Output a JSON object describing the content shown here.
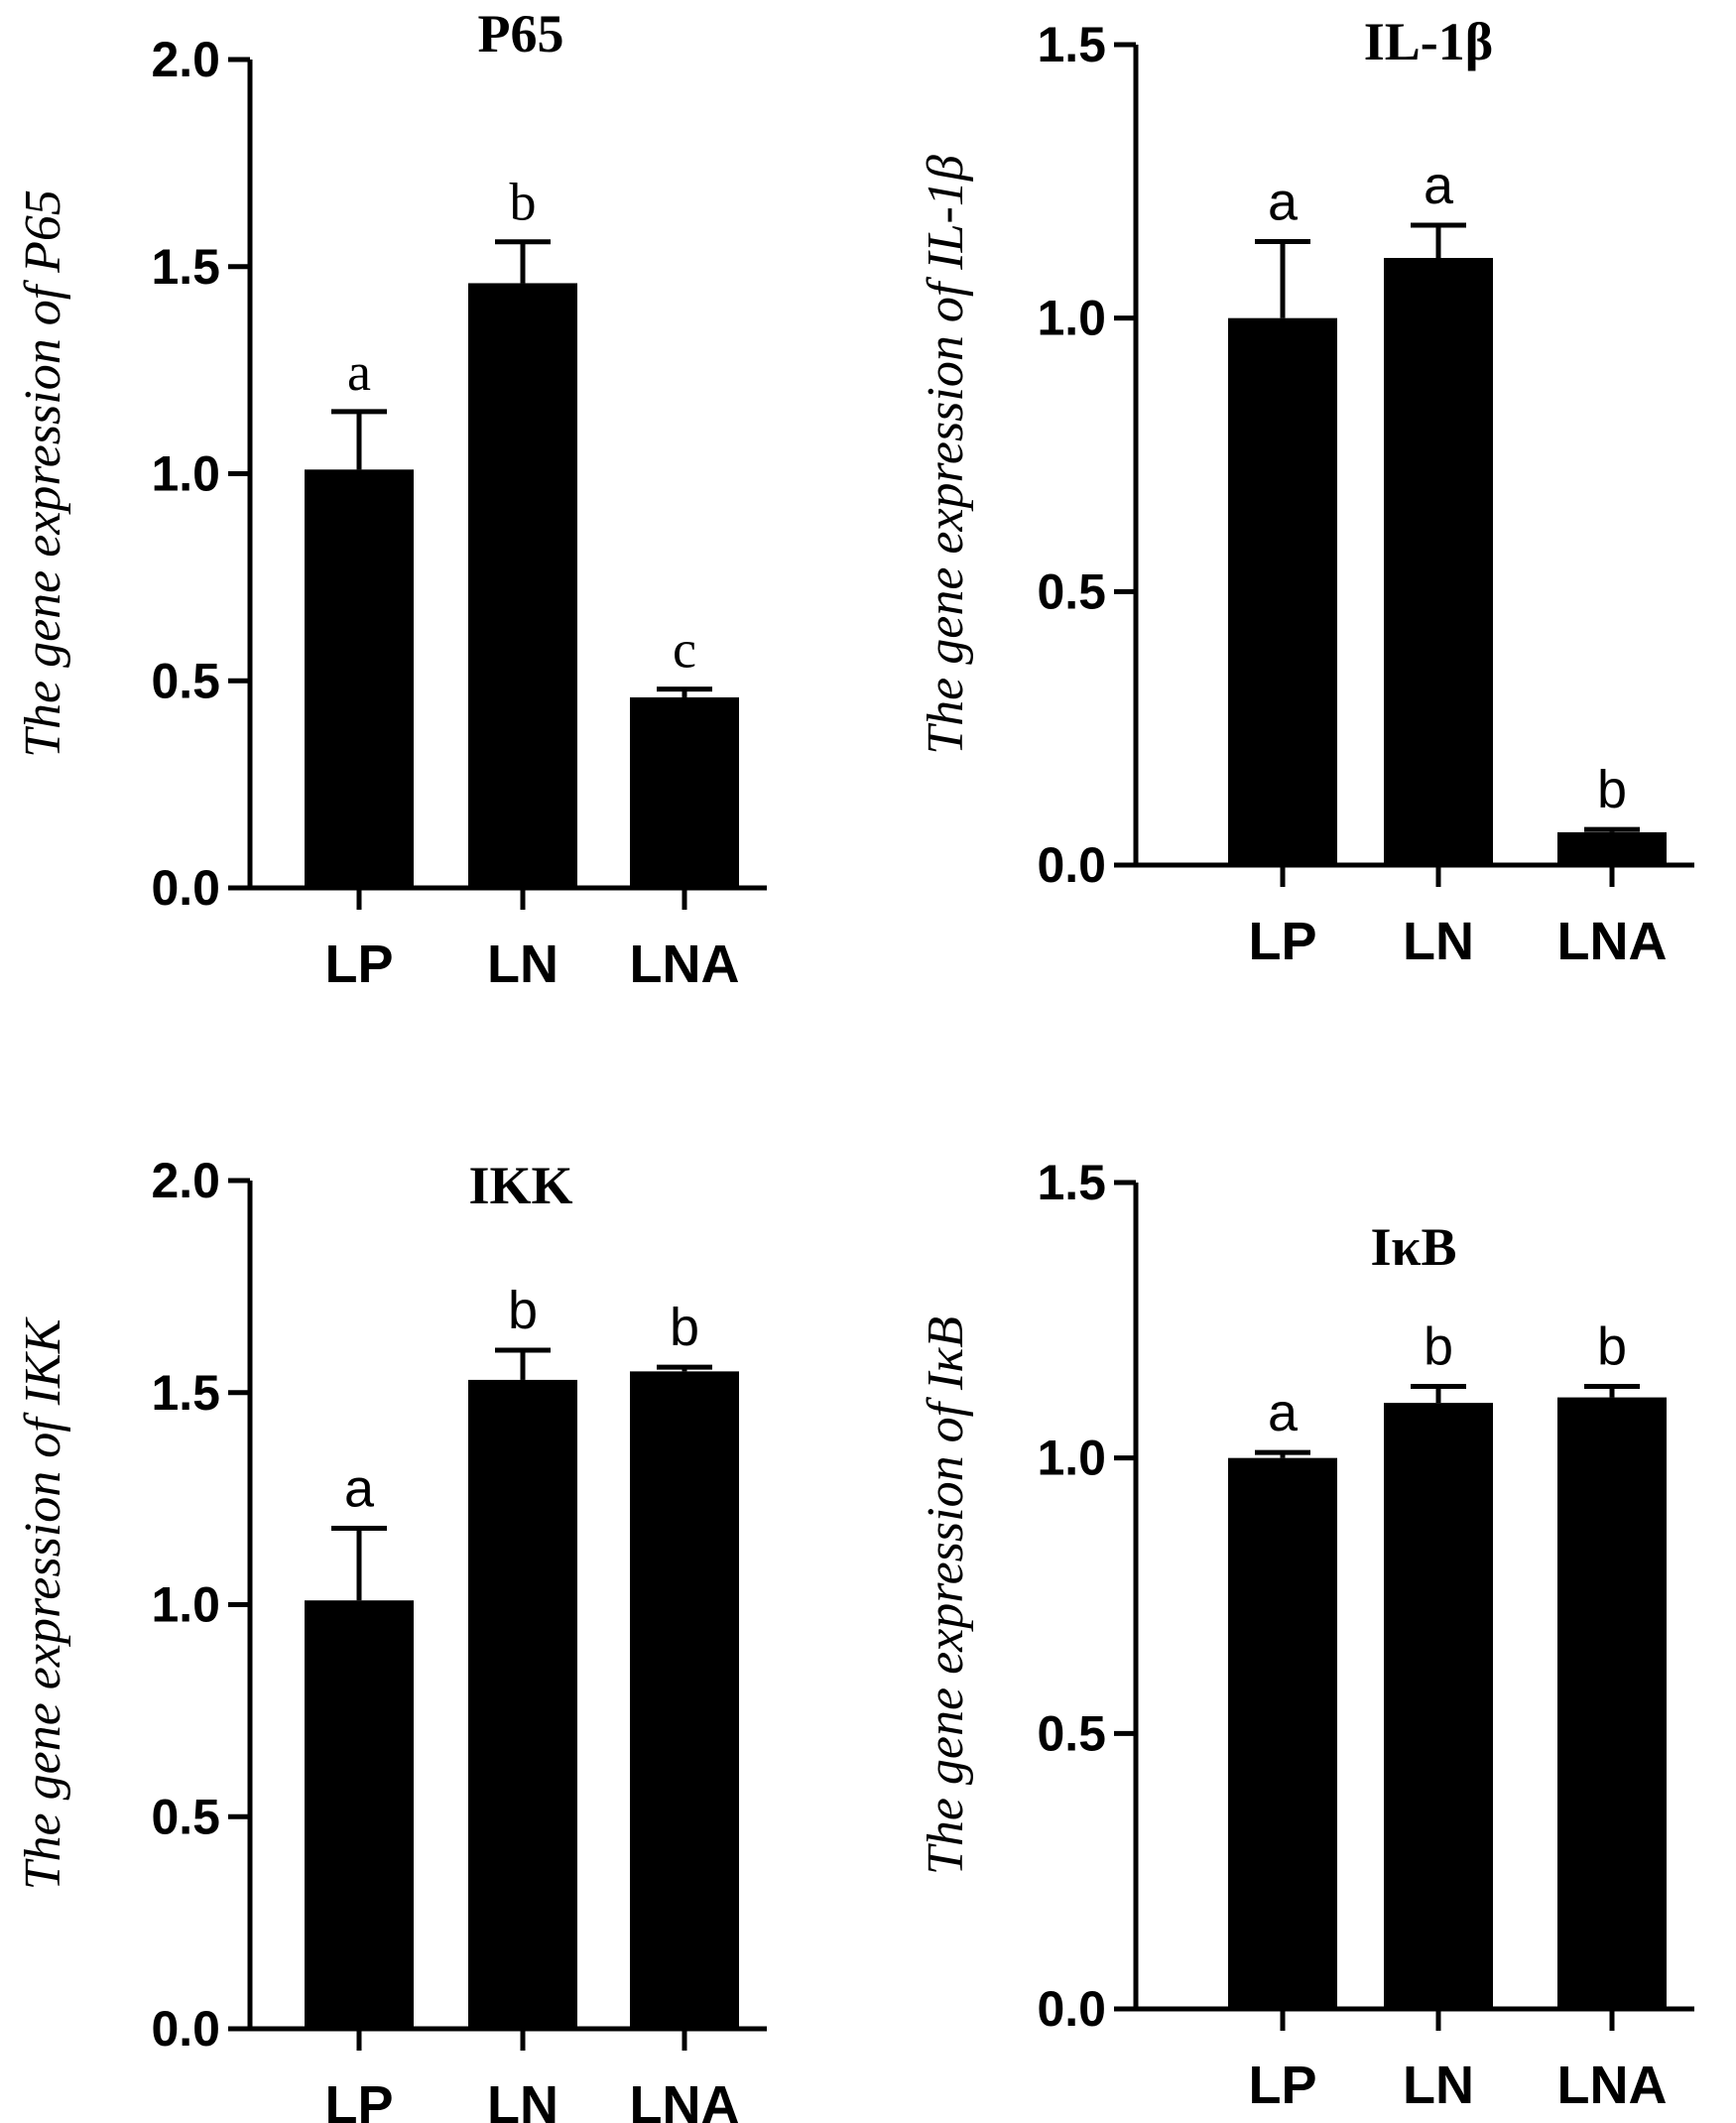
{
  "chart_data": [
    {
      "type": "bar",
      "title": "P65",
      "ylabel": "The gene expression of P65",
      "categories": [
        "LP",
        "LN",
        "LNA"
      ],
      "values": [
        1.01,
        1.46,
        0.46
      ],
      "errors": [
        0.14,
        0.1,
        0.02
      ],
      "significance": [
        "a",
        "b",
        "c"
      ],
      "ylim": [
        0,
        2.0
      ],
      "yticks": [
        "0.0",
        "0.5",
        "1.0",
        "1.5",
        "2.0"
      ],
      "grid": false,
      "bar_color": "#000000"
    },
    {
      "type": "bar",
      "title": "IL-1β",
      "ylabel": "The gene expression of IL-1β",
      "categories": [
        "LP",
        "LN",
        "LNA"
      ],
      "values": [
        1.0,
        1.11,
        0.06
      ],
      "errors": [
        0.14,
        0.06,
        0.005
      ],
      "significance": [
        "a",
        "a",
        "b"
      ],
      "ylim": [
        0,
        1.5
      ],
      "yticks": [
        "0.0",
        "0.5",
        "1.0",
        "1.5"
      ],
      "grid": false,
      "bar_color": "#000000"
    },
    {
      "type": "bar",
      "title": "IKK",
      "ylabel": "The gene expression of IKK",
      "categories": [
        "LP",
        "LN",
        "LNA"
      ],
      "values": [
        1.01,
        1.53,
        1.55
      ],
      "errors": [
        0.17,
        0.07,
        0.01
      ],
      "significance": [
        "a",
        "b",
        "b"
      ],
      "ylim": [
        0,
        2.0
      ],
      "yticks": [
        "0.0",
        "0.5",
        "1.0",
        "1.5",
        "2.0"
      ],
      "grid": false,
      "bar_color": "#000000"
    },
    {
      "type": "bar",
      "title": "IκB",
      "ylabel": "The gene expression of IκB",
      "categories": [
        "LP",
        "LN",
        "LNA"
      ],
      "values": [
        1.0,
        1.1,
        1.11
      ],
      "errors": [
        0.01,
        0.03,
        0.02
      ],
      "significance": [
        "a",
        "b",
        "b"
      ],
      "ylim": [
        0,
        1.5
      ],
      "yticks": [
        "0.0",
        "0.5",
        "1.0",
        "1.5"
      ],
      "grid": false,
      "bar_color": "#000000"
    }
  ]
}
